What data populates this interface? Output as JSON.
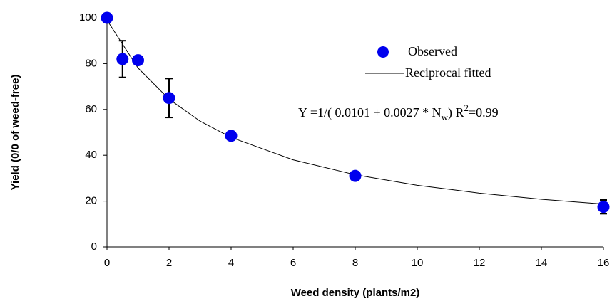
{
  "chart_data": {
    "type": "scatter",
    "xlabel": "Weed density (plants/m2)",
    "ylabel": "Yield (0/0 of weed-free)",
    "series": [
      {
        "name": "Observed",
        "color": "#0000ee",
        "x": [
          0,
          0.5,
          1,
          2,
          4,
          8,
          16
        ],
        "values": [
          100,
          82,
          81.5,
          65,
          48.5,
          31,
          17.5
        ],
        "errors": [
          null,
          8,
          null,
          8.5,
          null,
          null,
          3
        ]
      },
      {
        "name": "Reciprocal fitted",
        "color": "#000000",
        "x": [
          0,
          1,
          2,
          3,
          4,
          6,
          8,
          10,
          12,
          14,
          16
        ],
        "values": [
          99.0,
          78.1,
          64.5,
          54.9,
          47.8,
          38.0,
          31.5,
          26.9,
          23.5,
          20.8,
          18.7
        ]
      }
    ],
    "annotation": {
      "main": "Y =1/( 0.0101 + 0.0027 * N",
      "sub": "w",
      "mid": ") R",
      "sup": "2",
      "end": "=0.99"
    },
    "xlim": [
      0,
      16
    ],
    "xticks": [
      0,
      2,
      4,
      6,
      8,
      10,
      12,
      14,
      16
    ],
    "ylim": [
      0,
      100
    ],
    "yticks": [
      0,
      20,
      40,
      60,
      80,
      100
    ],
    "legend": "upper right"
  }
}
